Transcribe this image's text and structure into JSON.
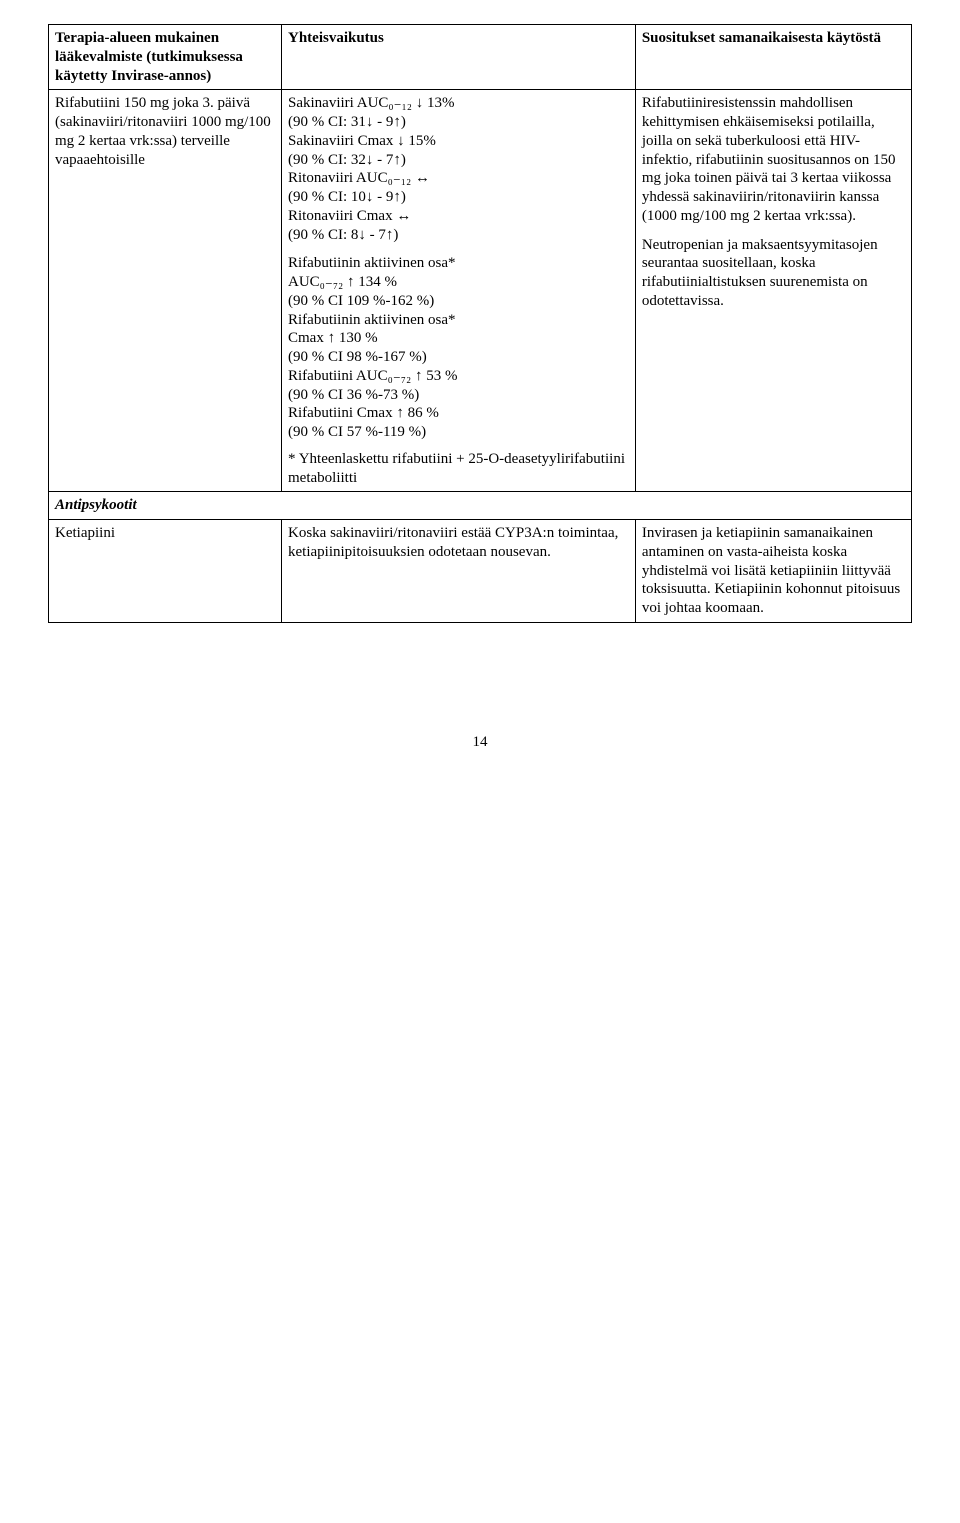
{
  "header": {
    "col1": "Terapia-alueen mukainen lääkevalmiste (tutkimuksessa käytetty Invirase-annos)",
    "col2": "Yhteisvaikutus",
    "col3": "Suositukset samanaikaisesta käytöstä"
  },
  "row1": {
    "drug": "Rifabutiini 150 mg joka 3. päivä\n(sakinaviiri/ritonaviiri 1000 mg/100 mg 2 kertaa vrk:ssa) terveille vapaaehtoisille",
    "interaction_block1": "Sakinaviiri AUC₀₋₁₂ ↓ 13%\n(90 % CI: 31↓ - 9↑)\nSakinaviiri Cmax ↓ 15%\n(90 % CI: 32↓ - 7↑)\nRitonaviiri AUC₀₋₁₂ ↔\n(90 % CI: 10↓ - 9↑)\nRitonaviiri Cmax ↔\n(90 % CI: 8↓ - 7↑)",
    "interaction_block2": "Rifabutiinin aktiivinen osa*\nAUC₀₋₇₂ ↑ 134 %\n(90 % CI 109 %-162 %)\nRifabutiinin aktiivinen osa*\nCmax ↑ 130 %\n(90 % CI 98 %-167 %)\nRifabutiini AUC₀₋₇₂ ↑ 53 %\n(90 % CI 36 %-73 %)\nRifabutiini Cmax ↑ 86 %\n(90 % CI 57 %-119 %)",
    "interaction_block3": "* Yhteenlaskettu rifabutiini + 25-O-deasetyylirifabutiini metaboliitti",
    "rec_p1": "Rifabutiiniresistenssin mahdollisen kehittymisen ehkäisemiseksi potilailla, joilla on sekä tuberkuloosi että HIV-infektio, rifabutiinin suositusannos on 150 mg joka toinen päivä tai 3 kertaa viikossa yhdessä sakinaviirin/ritonaviirin kanssa (1000 mg/100 mg 2 kertaa vrk:ssa).",
    "rec_p2": "Neutropenian ja maksaentsyymitasojen seurantaa suositellaan, koska rifabutiinialtistuksen suurenemista on odotettavissa."
  },
  "section": "Antipsykootit",
  "row2": {
    "drug": "Ketiapiini",
    "interaction": "Koska sakinaviiri/ritonaviiri estää CYP3A:n toimintaa, ketiapiinipitoisuuksien odotetaan nousevan.",
    "rec": "Invirasen ja ketiapiinin samanaikainen antaminen on vasta-aiheista koska yhdistelmä voi lisätä ketiapiiniin liittyvää toksisuutta. Ketiapiinin kohonnut pitoisuus voi johtaa koomaan."
  },
  "page_number": "14"
}
